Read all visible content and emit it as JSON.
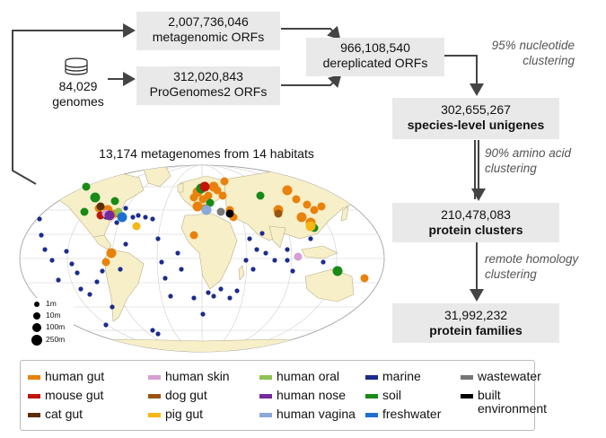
{
  "boxes": {
    "metagenomic": {
      "count": "2,007,736,046",
      "label": "metagenomic ORFs"
    },
    "progenomes": {
      "count": "312,020,843",
      "label": "ProGenomes2 ORFs"
    },
    "dereplicated": {
      "count": "966,108,540",
      "label": "dereplicated ORFs"
    },
    "unigenes": {
      "count": "302,655,267",
      "label": "species-level unigenes"
    },
    "clusters": {
      "count": "210,478,083",
      "label": "protein clusters"
    },
    "families": {
      "count": "31,992,232",
      "label": "protein families"
    }
  },
  "genomes": {
    "count": "84,029",
    "label": "genomes",
    "icon": "database-icon"
  },
  "steps": {
    "nucleotide": [
      "95% nucleotide",
      "clustering"
    ],
    "amino_acid": [
      "90% amino acid",
      "clustering"
    ],
    "homology": [
      "remote homology",
      "clustering"
    ]
  },
  "map_title": "13,174 metagenomes from 14 habitats",
  "size_legend": [
    "1m",
    "10m",
    "100m",
    "250m"
  ],
  "legend": [
    {
      "label": "human gut",
      "color": "#e8820c"
    },
    {
      "label": "mouse gut",
      "color": "#c0160a"
    },
    {
      "label": "cat gut",
      "color": "#5a2d06"
    },
    {
      "label": "human skin",
      "color": "#d59fd0"
    },
    {
      "label": "dog gut",
      "color": "#9a5412"
    },
    {
      "label": "pig gut",
      "color": "#f6b712"
    },
    {
      "label": "human oral",
      "color": "#8fc252"
    },
    {
      "label": "human nose",
      "color": "#742a9a"
    },
    {
      "label": "human vagina",
      "color": "#8aa8d8"
    },
    {
      "label": "marine",
      "color": "#1b2c8e"
    },
    {
      "label": "soil",
      "color": "#178a17"
    },
    {
      "label": "freshwater",
      "color": "#1f6fd0"
    },
    {
      "label": "wastewater",
      "color": "#777777"
    },
    {
      "label": "built",
      "label2": "environment",
      "color": "#000000"
    }
  ]
}
